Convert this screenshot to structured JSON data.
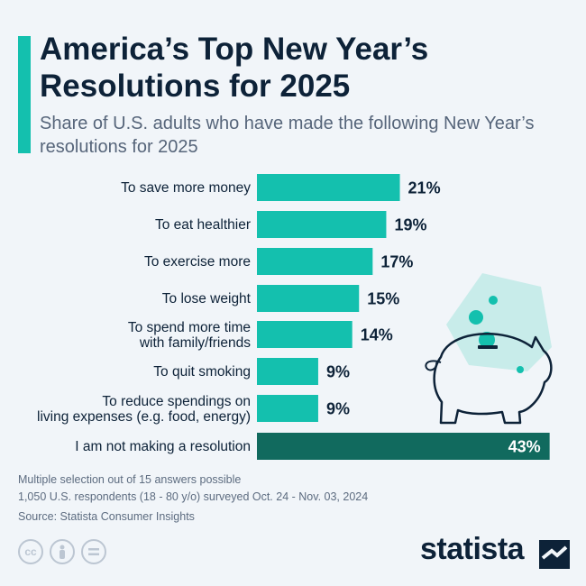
{
  "header": {
    "title": "America’s Top New Year’s Resolutions for 2025",
    "subtitle": "Share of U.S. adults who have made the following New Year’s resolutions for 2025"
  },
  "chart_data": {
    "type": "bar",
    "orientation": "horizontal",
    "categories": [
      [
        "To save more money"
      ],
      [
        "To eat healthier"
      ],
      [
        "To exercise more"
      ],
      [
        "To lose weight"
      ],
      [
        "To spend more time",
        "with family/friends"
      ],
      [
        "To quit smoking"
      ],
      [
        "To reduce spendings on",
        "living expenses (e.g. food, energy)"
      ],
      [
        "I am not making a resolution"
      ]
    ],
    "values": [
      21,
      19,
      17,
      15,
      14,
      9,
      9,
      43
    ],
    "value_labels": [
      "21%",
      "19%",
      "17%",
      "15%",
      "14%",
      "9%",
      "9%",
      "43%"
    ],
    "highlight_index": 7,
    "colors": {
      "bar": "#14c0ae",
      "highlight": "#116a5e",
      "label": "#0d2238",
      "highlight_label": "#ffffff"
    },
    "grid": false
  },
  "footnotes": {
    "line1": "Multiple selection out of 15 answers possible",
    "line2": "1,050 U.S. respondents (18 - 80 y/o) surveyed Oct. 24 - Nov. 03, 2024",
    "source": "Source: Statista Consumer Insights"
  },
  "license_icons": [
    "cc-icon",
    "person-icon",
    "equals-icon"
  ],
  "brand": {
    "name": "statista"
  },
  "illustration": {
    "icon": "piggy-bank-icon"
  }
}
